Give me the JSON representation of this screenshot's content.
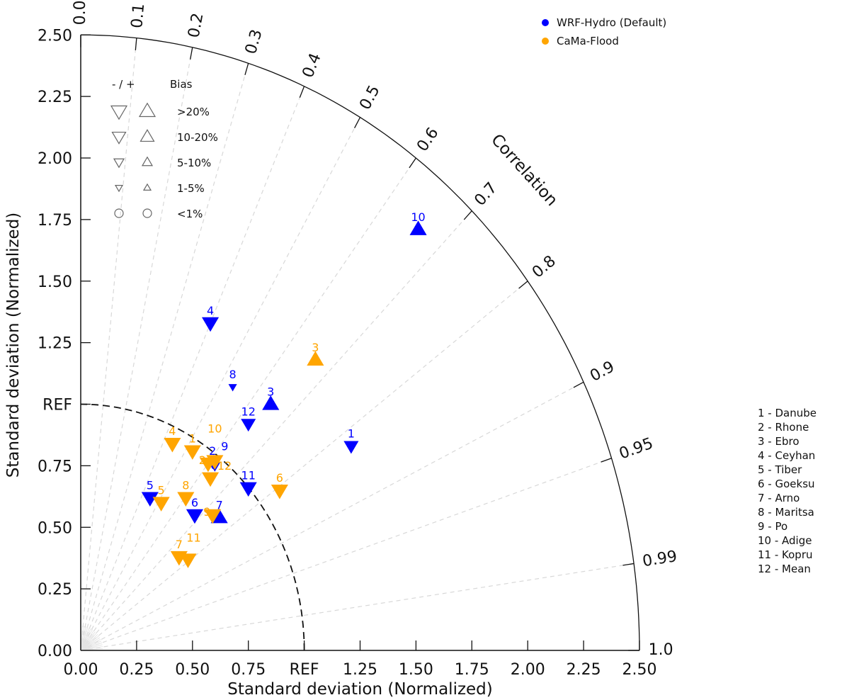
{
  "chart_data": {
    "type": "scatter",
    "subtype": "taylor-diagram",
    "xlabel": "Standard deviation (Normalized)",
    "ylabel": "Standard deviation (Normalized)",
    "angular_label": "Correlation",
    "xlim": [
      0,
      2.5
    ],
    "ylim": [
      0,
      2.5
    ],
    "std_ticks": [
      "0.00",
      "0.25",
      "0.50",
      "0.75",
      "REF",
      "1.25",
      "1.50",
      "1.75",
      "2.00",
      "2.25",
      "2.50"
    ],
    "std_tick_values": [
      0,
      0.25,
      0.5,
      0.75,
      1.0,
      1.25,
      1.5,
      1.75,
      2.0,
      2.25,
      2.5
    ],
    "corr_ticks": [
      "0.0",
      "0.1",
      "0.2",
      "0.3",
      "0.4",
      "0.5",
      "0.6",
      "0.7",
      "0.8",
      "0.9",
      "0.95",
      "0.99",
      "1.0"
    ],
    "corr_tick_values": [
      0,
      0.1,
      0.2,
      0.3,
      0.4,
      0.5,
      0.6,
      0.7,
      0.8,
      0.9,
      0.95,
      0.99,
      1.0
    ],
    "ref_std": 1.0,
    "ref_label": "REF",
    "legend": [
      {
        "name": "WRF-Hydro (Default)",
        "color": "#0000ff"
      },
      {
        "name": "CaMa-Flood",
        "color": "#ffa500"
      }
    ],
    "bias_legend": {
      "header_sign": "-  /  +",
      "header_label": "Bias",
      "classes": [
        ">20%",
        "10-20%",
        "5-10%",
        "1-5%",
        "<1%"
      ]
    },
    "stations": [
      "1 - Danube",
      "2 - Rhone",
      "3 - Ebro",
      "4 - Ceyhan",
      "5 - Tiber",
      "6 - Goeksu",
      "7 - Arno",
      "8 - Maritsa",
      "9 - Po",
      "10 - Adige",
      "11 - Kopru",
      "12 - Mean"
    ],
    "series": [
      {
        "name": "WRF-Hydro (Default)",
        "color": "#0000ff",
        "points": [
          {
            "label": "1",
            "x": 1.21,
            "y": 0.83,
            "sign": "-",
            "bias": "10-20%"
          },
          {
            "label": "2",
            "x": 0.59,
            "y": 0.76,
            "sign": "-",
            "bias": "5-10%"
          },
          {
            "label": "3",
            "x": 0.85,
            "y": 1.0,
            "sign": "+",
            "bias": ">20%"
          },
          {
            "label": "4",
            "x": 0.58,
            "y": 1.33,
            "sign": "-",
            "bias": ">20%"
          },
          {
            "label": "5",
            "x": 0.31,
            "y": 0.62,
            "sign": "-",
            "bias": ">20%"
          },
          {
            "label": "6",
            "x": 0.51,
            "y": 0.55,
            "sign": "-",
            "bias": ">20%"
          },
          {
            "label": "7",
            "x": 0.62,
            "y": 0.54,
            "sign": "+",
            "bias": ">20%"
          },
          {
            "label": "8",
            "x": 0.68,
            "y": 1.07,
            "sign": "-",
            "bias": "1-5%"
          },
          {
            "label": "9",
            "x": 0.6,
            "y": 0.75,
            "sign": "-",
            "bias": "5-10%"
          },
          {
            "label": "10",
            "x": 1.51,
            "y": 1.71,
            "sign": "+",
            "bias": ">20%"
          },
          {
            "label": "11",
            "x": 0.75,
            "y": 0.66,
            "sign": "-",
            "bias": ">20%"
          },
          {
            "label": "12",
            "x": 0.75,
            "y": 0.92,
            "sign": "-",
            "bias": "10-20%"
          }
        ]
      },
      {
        "name": "CaMa-Flood",
        "color": "#ffa500",
        "points": [
          {
            "label": "1",
            "x": 0.5,
            "y": 0.81,
            "sign": "-",
            "bias": ">20%"
          },
          {
            "label": "2",
            "x": 0.57,
            "y": 0.76,
            "sign": "-",
            "bias": ">20%"
          },
          {
            "label": "3",
            "x": 1.05,
            "y": 1.18,
            "sign": "+",
            "bias": ">20%"
          },
          {
            "label": "4",
            "x": 0.41,
            "y": 0.84,
            "sign": "-",
            "bias": ">20%"
          },
          {
            "label": "5",
            "x": 0.36,
            "y": 0.6,
            "sign": "-",
            "bias": ">20%"
          },
          {
            "label": "6",
            "x": 0.89,
            "y": 0.65,
            "sign": "-",
            "bias": ">20%"
          },
          {
            "label": "7",
            "x": 0.44,
            "y": 0.38,
            "sign": "-",
            "bias": ">20%"
          },
          {
            "label": "8",
            "x": 0.47,
            "y": 0.62,
            "sign": "-",
            "bias": ">20%"
          },
          {
            "label": "9",
            "x": 0.59,
            "y": 0.55,
            "sign": "-",
            "bias": ">20%"
          },
          {
            "label": "10",
            "x": 0.6,
            "y": 0.77,
            "sign": "-",
            "bias": ">20%"
          },
          {
            "label": "11",
            "x": 0.48,
            "y": 0.37,
            "sign": "-",
            "bias": ">20%"
          },
          {
            "label": "12",
            "x": 0.58,
            "y": 0.7,
            "sign": "-",
            "bias": ">20%"
          }
        ]
      }
    ]
  }
}
